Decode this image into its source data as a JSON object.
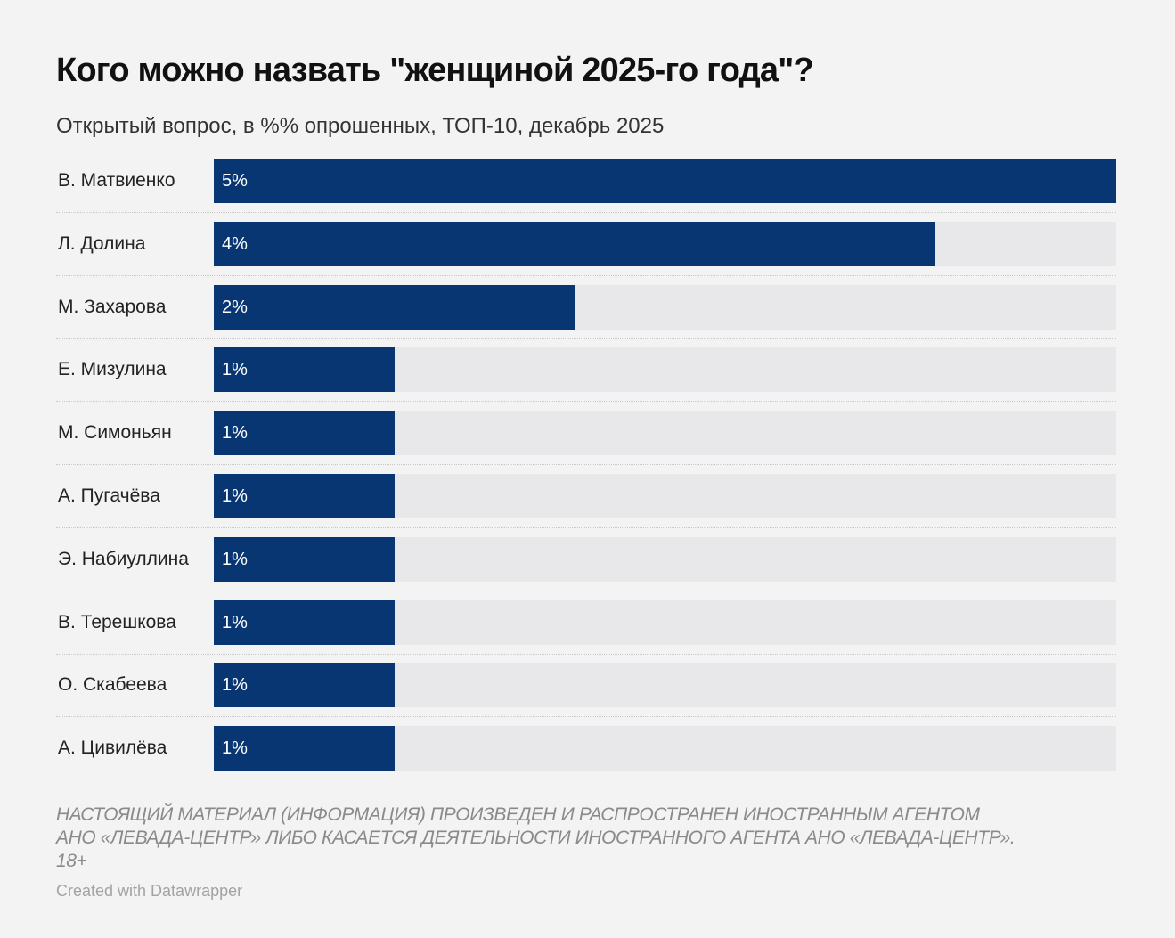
{
  "chart_data": {
    "type": "bar",
    "orientation": "horizontal",
    "title": "Кого можно назвать \"женщиной 2025-го года\"?",
    "subtitle": "Открытый вопрос, в %% опрошенных, ТОП-10, декабрь 2025",
    "categories": [
      "В. Матвиенко",
      "Л. Долина",
      "М. Захарова",
      "Е. Мизулина",
      "М. Симоньян",
      "А. Пугачёва",
      "Э. Набиуллина",
      "В. Терешкова",
      "О. Скабеева",
      "А. Цивилёва"
    ],
    "values": [
      5,
      4,
      2,
      1,
      1,
      1,
      1,
      1,
      1,
      1
    ],
    "value_labels": [
      "5%",
      "4%",
      "2%",
      "1%",
      "1%",
      "1%",
      "1%",
      "1%",
      "1%",
      "1%"
    ],
    "xlim": [
      0,
      5
    ],
    "grid": false,
    "colors": {
      "bar": "#083672",
      "track": "#e8e8ea",
      "background": "#f3f3f3"
    }
  },
  "footer": {
    "note_lines": [
      "НАСТОЯЩИЙ МАТЕРИАЛ (ИНФОРМАЦИЯ) ПРОИЗВЕДЕН И РАСПРОСТРАНЕН ИНОСТРАННЫМ АГЕНТОМ",
      "АНО «ЛЕВАДА-ЦЕНТР» ЛИБО КАСАЕТСЯ ДЕЯТЕЛЬНОСТИ ИНОСТРАННОГО АГЕНТА АНО «ЛЕВАДА-ЦЕНТР».",
      "18+"
    ],
    "credit": "Created with Datawrapper"
  }
}
